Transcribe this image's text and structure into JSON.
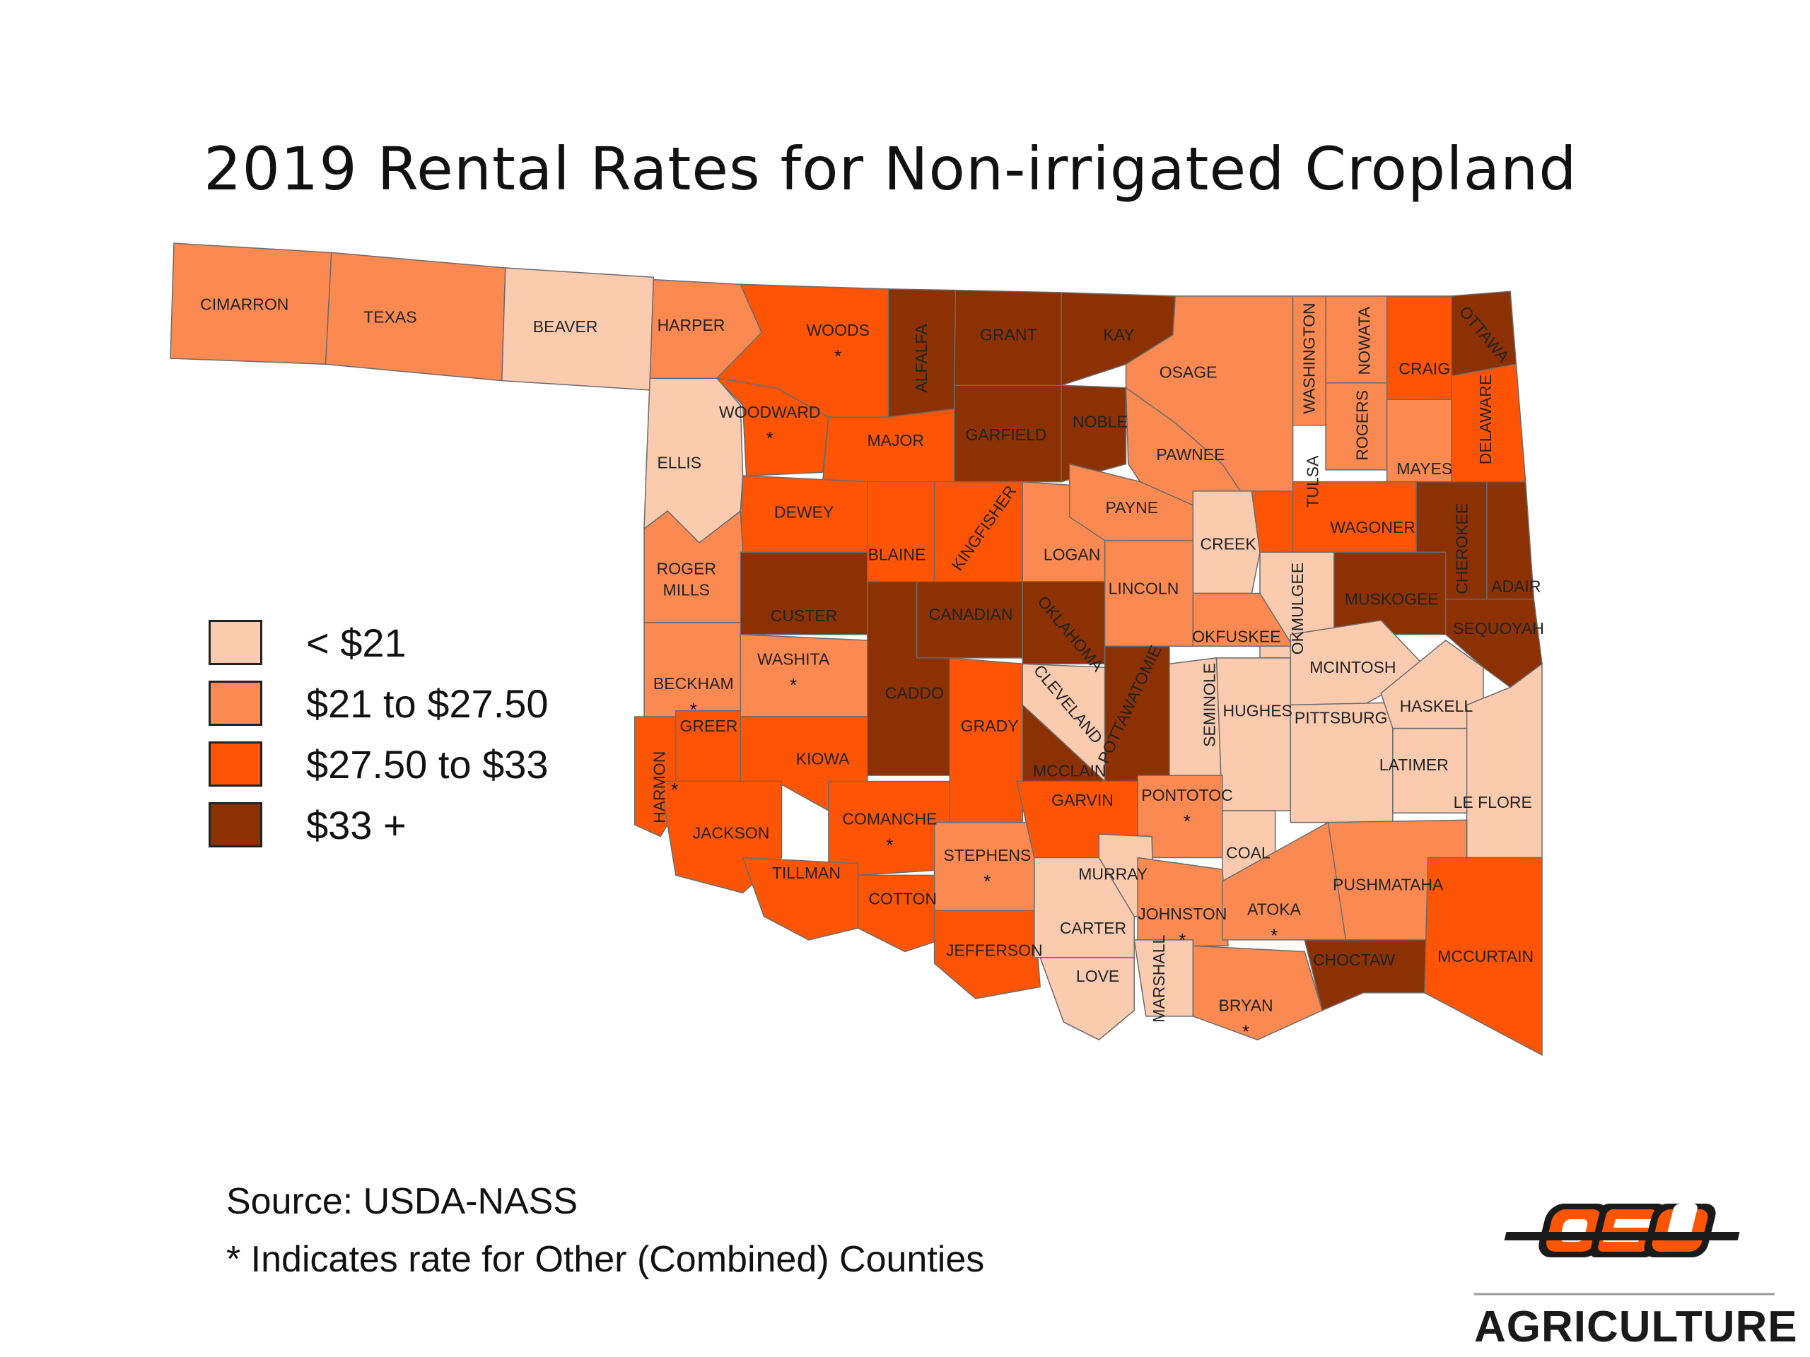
{
  "title": "2019 Rental Rates for Non-irrigated Cropland",
  "colors": {
    "lt21": "#fbcbb0",
    "21to27_50": "#fb8a52",
    "27_50to33": "#fd5505",
    "33plus": "#8b3104"
  },
  "legend": [
    {
      "key": "lt21",
      "label": "< $21"
    },
    {
      "key": "21to27_50",
      "label": "$21 to $27.50"
    },
    {
      "key": "27_50to33",
      "label": "$27.50 to $33"
    },
    {
      "key": "33plus",
      "label": "$33 +"
    }
  ],
  "counties": [
    {
      "name": "CIMARRON",
      "category": "21to27_50",
      "combined": false
    },
    {
      "name": "TEXAS",
      "category": "21to27_50",
      "combined": false
    },
    {
      "name": "BEAVER",
      "category": "lt21",
      "combined": false
    },
    {
      "name": "HARPER",
      "category": "21to27_50",
      "combined": false
    },
    {
      "name": "WOODS",
      "category": "27_50to33",
      "combined": true
    },
    {
      "name": "ALFALFA",
      "category": "33plus",
      "combined": false
    },
    {
      "name": "GRANT",
      "category": "33plus",
      "combined": false
    },
    {
      "name": "KAY",
      "category": "33plus",
      "combined": false
    },
    {
      "name": "OSAGE",
      "category": "21to27_50",
      "combined": false
    },
    {
      "name": "WASHINGTON",
      "category": "21to27_50",
      "combined": false
    },
    {
      "name": "NOWATA",
      "category": "21to27_50",
      "combined": false
    },
    {
      "name": "CRAIG",
      "category": "27_50to33",
      "combined": false
    },
    {
      "name": "OTTAWA",
      "category": "33plus",
      "combined": false
    },
    {
      "name": "ELLIS",
      "category": "lt21",
      "combined": false
    },
    {
      "name": "WOODWARD",
      "category": "27_50to33",
      "combined": true
    },
    {
      "name": "MAJOR",
      "category": "27_50to33",
      "combined": false
    },
    {
      "name": "GARFIELD",
      "category": "33plus",
      "combined": false
    },
    {
      "name": "NOBLE",
      "category": "33plus",
      "combined": false
    },
    {
      "name": "PAWNEE",
      "category": "21to27_50",
      "combined": false
    },
    {
      "name": "ROGERS",
      "category": "21to27_50",
      "combined": false
    },
    {
      "name": "MAYES",
      "category": "21to27_50",
      "combined": false
    },
    {
      "name": "DELAWARE",
      "category": "27_50to33",
      "combined": false
    },
    {
      "name": "DEWEY",
      "category": "27_50to33",
      "combined": false
    },
    {
      "name": "BLAINE",
      "category": "27_50to33",
      "combined": false
    },
    {
      "name": "KINGFISHER",
      "category": "27_50to33",
      "combined": false
    },
    {
      "name": "LOGAN",
      "category": "21to27_50",
      "combined": false
    },
    {
      "name": "PAYNE",
      "category": "21to27_50",
      "combined": false
    },
    {
      "name": "CREEK",
      "category": "lt21",
      "combined": false
    },
    {
      "name": "TULSA",
      "category": "27_50to33",
      "combined": false
    },
    {
      "name": "WAGONER",
      "category": "27_50to33",
      "combined": false
    },
    {
      "name": "CHEROKEE",
      "category": "33plus",
      "combined": false
    },
    {
      "name": "ADAIR",
      "category": "33plus",
      "combined": false
    },
    {
      "name": "ROGER MILLS",
      "category": "21to27_50",
      "combined": false
    },
    {
      "name": "CUSTER",
      "category": "33plus",
      "combined": false
    },
    {
      "name": "CANADIAN",
      "category": "33plus",
      "combined": false
    },
    {
      "name": "OKLAHOMA",
      "category": "33plus",
      "combined": false
    },
    {
      "name": "LINCOLN",
      "category": "21to27_50",
      "combined": false
    },
    {
      "name": "OKMULGEE",
      "category": "lt21",
      "combined": false
    },
    {
      "name": "MUSKOGEE",
      "category": "33plus",
      "combined": false
    },
    {
      "name": "SEQUOYAH",
      "category": "33plus",
      "combined": false
    },
    {
      "name": "BECKHAM",
      "category": "21to27_50",
      "combined": true
    },
    {
      "name": "WASHITA",
      "category": "21to27_50",
      "combined": true
    },
    {
      "name": "CADDO",
      "category": "33plus",
      "combined": false
    },
    {
      "name": "GRADY",
      "category": "27_50to33",
      "combined": false
    },
    {
      "name": "CLEVELAND",
      "category": "lt21",
      "combined": false
    },
    {
      "name": "POTTAWATOMIE",
      "category": "33plus",
      "combined": false
    },
    {
      "name": "OKFUSKEE",
      "category": "21to27_50",
      "combined": false
    },
    {
      "name": "SEMINOLE",
      "category": "lt21",
      "combined": false
    },
    {
      "name": "HUGHES",
      "category": "lt21",
      "combined": false
    },
    {
      "name": "MCINTOSH",
      "category": "lt21",
      "combined": false
    },
    {
      "name": "PITTSBURG",
      "category": "lt21",
      "combined": false
    },
    {
      "name": "HASKELL",
      "category": "lt21",
      "combined": false
    },
    {
      "name": "LATIMER",
      "category": "lt21",
      "combined": false
    },
    {
      "name": "LE FLORE",
      "category": "lt21",
      "combined": false
    },
    {
      "name": "GREER",
      "category": "27_50to33",
      "combined": false
    },
    {
      "name": "HARMON",
      "category": "27_50to33",
      "combined": true
    },
    {
      "name": "KIOWA",
      "category": "27_50to33",
      "combined": false
    },
    {
      "name": "JACKSON",
      "category": "27_50to33",
      "combined": false
    },
    {
      "name": "COMANCHE",
      "category": "27_50to33",
      "combined": true
    },
    {
      "name": "TILLMAN",
      "category": "27_50to33",
      "combined": false
    },
    {
      "name": "COTTON",
      "category": "27_50to33",
      "combined": false
    },
    {
      "name": "STEPHENS",
      "category": "21to27_50",
      "combined": true
    },
    {
      "name": "JEFFERSON",
      "category": "27_50to33",
      "combined": false
    },
    {
      "name": "MCCLAIN",
      "category": "33plus",
      "combined": false
    },
    {
      "name": "GARVIN",
      "category": "27_50to33",
      "combined": false
    },
    {
      "name": "PONTOTOC",
      "category": "21to27_50",
      "combined": true
    },
    {
      "name": "MURRAY",
      "category": "lt21",
      "combined": false
    },
    {
      "name": "COAL",
      "category": "lt21",
      "combined": false
    },
    {
      "name": "CARTER",
      "category": "lt21",
      "combined": false
    },
    {
      "name": "JOHNSTON",
      "category": "21to27_50",
      "combined": true
    },
    {
      "name": "ATOKA",
      "category": "21to27_50",
      "combined": true
    },
    {
      "name": "PUSHMATAHA",
      "category": "21to27_50",
      "combined": false
    },
    {
      "name": "LOVE",
      "category": "lt21",
      "combined": false
    },
    {
      "name": "MARSHALL",
      "category": "lt21",
      "combined": false
    },
    {
      "name": "BRYAN",
      "category": "21to27_50",
      "combined": true
    },
    {
      "name": "CHOCTAW",
      "category": "33plus",
      "combined": false
    },
    {
      "name": "MCCURTAIN",
      "category": "27_50to33",
      "combined": false
    }
  ],
  "source": "Source:  USDA-NASS",
  "note": "*  Indicates rate for Other (Combined) Counties",
  "logo": {
    "text": "AGRICULTURE",
    "mark": "OSU"
  }
}
